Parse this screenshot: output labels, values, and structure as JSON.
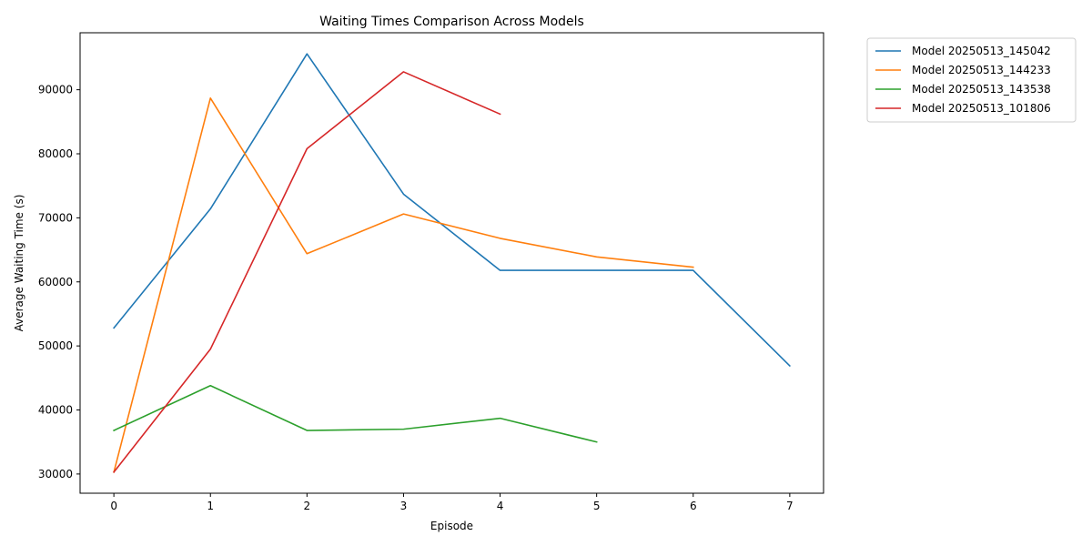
{
  "chart_data": {
    "type": "line",
    "title": "Waiting Times Comparison Across Models",
    "xlabel": "Episode",
    "ylabel": "Average Waiting Time (s)",
    "xlim": [
      -0.35,
      7.35
    ],
    "ylim": [
      27000,
      98900
    ],
    "xticks": [
      0,
      1,
      2,
      3,
      4,
      5,
      6,
      7
    ],
    "yticks": [
      30000,
      40000,
      50000,
      60000,
      70000,
      80000,
      90000
    ],
    "grid": false,
    "legend_position": "outside-top-right",
    "series": [
      {
        "name": "Model 20250513_145042",
        "color": "#1f77b4",
        "x": [
          0,
          1,
          2,
          3,
          4,
          5,
          6,
          7
        ],
        "values": [
          52800,
          71400,
          95600,
          73700,
          61800,
          61800,
          61800,
          46900
        ]
      },
      {
        "name": "Model 20250513_144233",
        "color": "#ff7f0e",
        "x": [
          0,
          1,
          2,
          3,
          4,
          5,
          6
        ],
        "values": [
          30300,
          88700,
          64400,
          70600,
          66800,
          63900,
          62300
        ]
      },
      {
        "name": "Model 20250513_143538",
        "color": "#2ca02c",
        "x": [
          0,
          1,
          2,
          3,
          4,
          5
        ],
        "values": [
          36800,
          43800,
          36800,
          37000,
          38700,
          35000
        ]
      },
      {
        "name": "Model 20250513_101806",
        "color": "#d62728",
        "x": [
          0,
          1,
          2,
          3,
          4
        ],
        "values": [
          30300,
          49500,
          80800,
          92800,
          86200
        ]
      }
    ]
  }
}
